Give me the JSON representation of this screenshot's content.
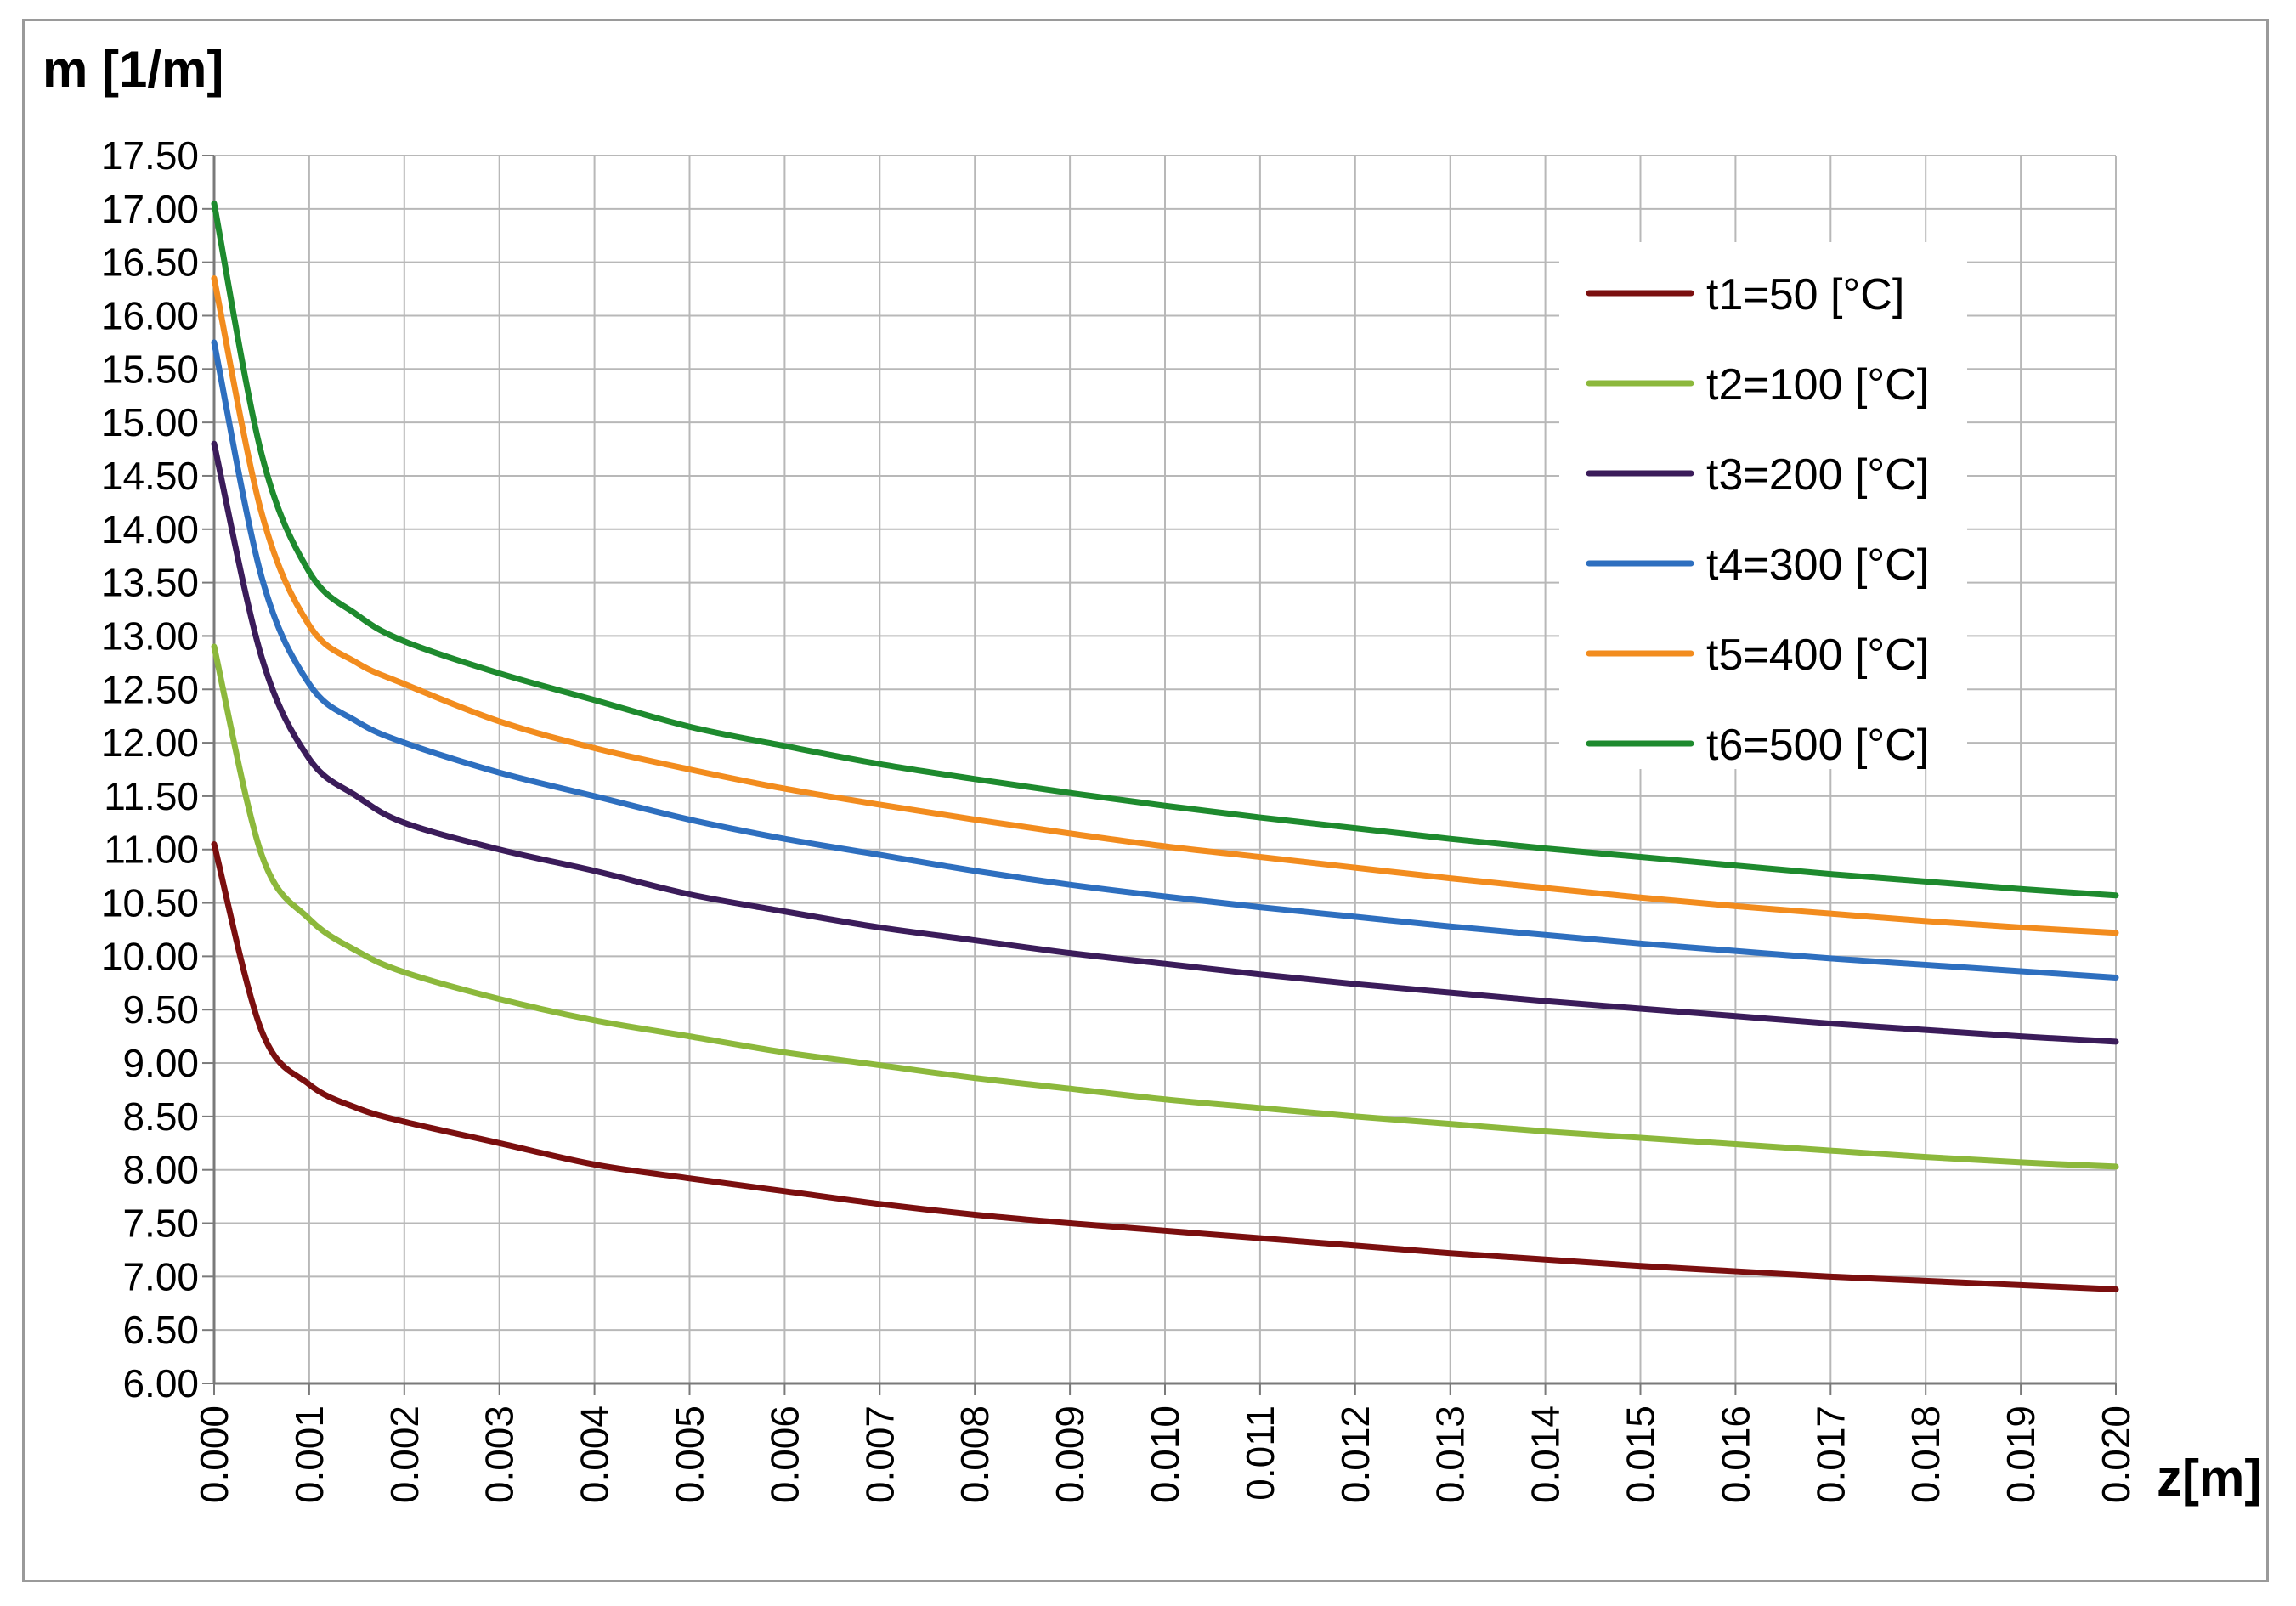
{
  "chart_data": {
    "type": "line",
    "title": "",
    "ylabel": "m [1/m]",
    "xlabel": "z[m]",
    "ylim": [
      6.0,
      17.5
    ],
    "xlim": [
      0.0,
      0.02
    ],
    "grid": true,
    "legend_position": "top-right",
    "yticks": [
      "6.00",
      "6.50",
      "7.00",
      "7.50",
      "8.00",
      "8.50",
      "9.00",
      "9.50",
      "10.00",
      "10.50",
      "11.00",
      "11.50",
      "12.00",
      "12.50",
      "13.00",
      "13.50",
      "14.00",
      "14.50",
      "15.00",
      "15.50",
      "16.00",
      "16.50",
      "17.00",
      "17.50"
    ],
    "xticks": [
      "0.000",
      "0.001",
      "0.002",
      "0.003",
      "0.004",
      "0.005",
      "0.006",
      "0.007",
      "0.008",
      "0.009",
      "0.010",
      "0.011",
      "0.012",
      "0.013",
      "0.014",
      "0.015",
      "0.016",
      "0.017",
      "0.018",
      "0.019",
      "0.020"
    ],
    "x": [
      0.0,
      0.0005,
      0.001,
      0.0015,
      0.002,
      0.003,
      0.004,
      0.005,
      0.006,
      0.007,
      0.008,
      0.009,
      0.01,
      0.011,
      0.012,
      0.013,
      0.014,
      0.015,
      0.016,
      0.017,
      0.018,
      0.019,
      0.02
    ],
    "series": [
      {
        "name": "t1=50 [°C]",
        "color": "#7b0f0f",
        "values": [
          11.05,
          9.3,
          8.8,
          8.58,
          8.45,
          8.25,
          8.05,
          7.92,
          7.8,
          7.68,
          7.58,
          7.5,
          7.43,
          7.36,
          7.29,
          7.22,
          7.16,
          7.1,
          7.05,
          7.0,
          6.96,
          6.92,
          6.88
        ]
      },
      {
        "name": "t2=100 [°C]",
        "color": "#8cb83c",
        "values": [
          12.9,
          10.95,
          10.35,
          10.05,
          9.85,
          9.6,
          9.4,
          9.25,
          9.1,
          8.98,
          8.86,
          8.76,
          8.66,
          8.58,
          8.5,
          8.43,
          8.36,
          8.3,
          8.24,
          8.18,
          8.12,
          8.07,
          8.03
        ]
      },
      {
        "name": "t3=200 [°C]",
        "color": "#3b1c5a",
        "values": [
          14.8,
          12.8,
          11.85,
          11.5,
          11.25,
          11.0,
          10.8,
          10.58,
          10.42,
          10.27,
          10.15,
          10.03,
          9.93,
          9.83,
          9.74,
          9.66,
          9.58,
          9.51,
          9.44,
          9.37,
          9.31,
          9.25,
          9.2
        ]
      },
      {
        "name": "t4=300 [°C]",
        "color": "#2e6fbf",
        "values": [
          15.75,
          13.55,
          12.55,
          12.2,
          12.0,
          11.72,
          11.5,
          11.28,
          11.1,
          10.95,
          10.8,
          10.67,
          10.56,
          10.46,
          10.37,
          10.28,
          10.2,
          10.12,
          10.05,
          9.98,
          9.92,
          9.86,
          9.8
        ]
      },
      {
        "name": "t5=400 [°C]",
        "color": "#f28c1e",
        "values": [
          16.35,
          14.15,
          13.1,
          12.75,
          12.55,
          12.2,
          11.95,
          11.75,
          11.57,
          11.42,
          11.28,
          11.15,
          11.03,
          10.93,
          10.83,
          10.73,
          10.64,
          10.55,
          10.47,
          10.4,
          10.33,
          10.27,
          10.22
        ]
      },
      {
        "name": "t6=500 [°C]",
        "color": "#1e8a2e",
        "values": [
          17.05,
          14.7,
          13.6,
          13.2,
          12.95,
          12.65,
          12.4,
          12.15,
          11.97,
          11.8,
          11.66,
          11.53,
          11.41,
          11.3,
          11.2,
          11.1,
          11.01,
          10.93,
          10.85,
          10.77,
          10.7,
          10.63,
          10.57
        ]
      }
    ]
  }
}
